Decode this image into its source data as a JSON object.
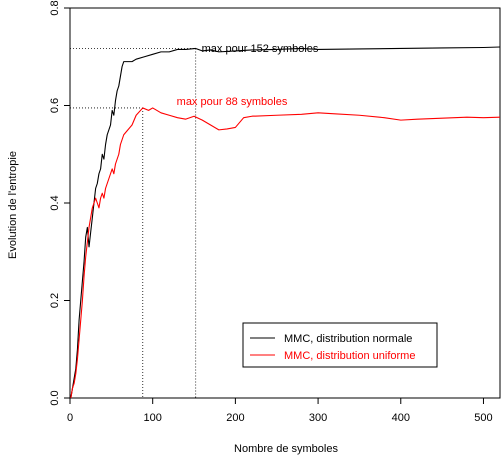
{
  "chart_data": {
    "type": "line",
    "title": "",
    "xlabel": "Nombre de symboles",
    "ylabel": "Evolution de l'entropie",
    "xlim": [
      0,
      520
    ],
    "ylim": [
      0,
      0.8
    ],
    "x_ticks": [
      0,
      100,
      200,
      300,
      400,
      500
    ],
    "x_tick_labels": [
      "0",
      "100",
      "200",
      "300",
      "400",
      "500"
    ],
    "y_ticks": [
      0,
      0.2,
      0.4,
      0.6,
      0.8
    ],
    "y_tick_labels": [
      "0.0",
      "0.2",
      "0.4",
      "0.6",
      "0.8"
    ],
    "grid": false,
    "legend_position": "bottom-right",
    "series": [
      {
        "name": "MMC, distribution normale",
        "color": "#000000",
        "x": [
          1,
          3,
          5,
          7,
          9,
          11,
          13,
          15,
          17,
          19,
          21,
          23,
          25,
          27,
          29,
          31,
          33,
          35,
          37,
          39,
          41,
          43,
          45,
          47,
          49,
          51,
          53,
          55,
          57,
          59,
          61,
          63,
          65,
          70,
          75,
          80,
          90,
          100,
          110,
          120,
          130,
          140,
          152,
          160,
          170,
          180,
          200,
          220,
          250,
          280,
          300,
          350,
          400,
          450,
          500,
          520
        ],
        "y": [
          0.0,
          0.02,
          0.04,
          0.06,
          0.1,
          0.16,
          0.2,
          0.24,
          0.28,
          0.33,
          0.35,
          0.31,
          0.34,
          0.37,
          0.4,
          0.43,
          0.44,
          0.46,
          0.47,
          0.5,
          0.49,
          0.52,
          0.54,
          0.55,
          0.56,
          0.59,
          0.58,
          0.61,
          0.63,
          0.64,
          0.66,
          0.68,
          0.69,
          0.69,
          0.69,
          0.695,
          0.7,
          0.705,
          0.71,
          0.71,
          0.715,
          0.715,
          0.717,
          0.712,
          0.714,
          0.71,
          0.712,
          0.714,
          0.715,
          0.717,
          0.715,
          0.716,
          0.717,
          0.718,
          0.719,
          0.72
        ]
      },
      {
        "name": "MMC, distribution uniforme",
        "color": "#ff0000",
        "x": [
          1,
          3,
          5,
          7,
          9,
          11,
          13,
          15,
          17,
          19,
          21,
          23,
          25,
          27,
          29,
          31,
          33,
          35,
          37,
          39,
          41,
          43,
          45,
          47,
          49,
          51,
          53,
          55,
          57,
          59,
          61,
          63,
          65,
          70,
          75,
          80,
          88,
          95,
          100,
          110,
          120,
          130,
          140,
          150,
          160,
          170,
          180,
          190,
          200,
          210,
          220,
          250,
          280,
          300,
          320,
          350,
          380,
          400,
          420,
          450,
          480,
          500,
          520
        ],
        "y": [
          0.0,
          0.02,
          0.03,
          0.05,
          0.08,
          0.12,
          0.16,
          0.2,
          0.25,
          0.29,
          0.32,
          0.35,
          0.37,
          0.39,
          0.4,
          0.41,
          0.4,
          0.39,
          0.41,
          0.42,
          0.41,
          0.43,
          0.44,
          0.45,
          0.46,
          0.47,
          0.46,
          0.48,
          0.49,
          0.5,
          0.52,
          0.53,
          0.54,
          0.55,
          0.56,
          0.58,
          0.595,
          0.59,
          0.595,
          0.585,
          0.58,
          0.575,
          0.572,
          0.578,
          0.57,
          0.56,
          0.55,
          0.552,
          0.555,
          0.575,
          0.578,
          0.58,
          0.582,
          0.585,
          0.583,
          0.58,
          0.575,
          0.57,
          0.572,
          0.574,
          0.576,
          0.575,
          0.576
        ]
      }
    ],
    "annotations": [
      {
        "text": "max pour 152 symboles",
        "x": 152,
        "y": 0.717,
        "color": "#000000"
      },
      {
        "text": "max pour 88 symboles",
        "x": 88,
        "y": 0.595,
        "color": "#ff0000"
      }
    ]
  }
}
